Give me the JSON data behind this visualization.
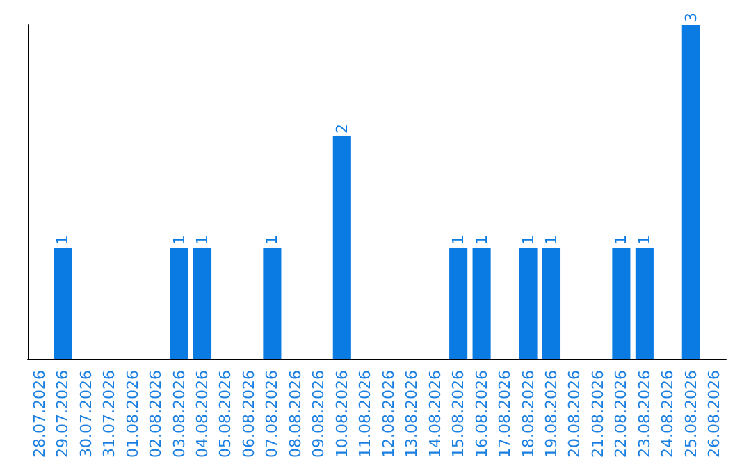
{
  "chart_data": {
    "type": "bar",
    "categories": [
      "28.07.2026",
      "29.07.2026",
      "30.07.2026",
      "31.07.2026",
      "01.08.2026",
      "02.08.2026",
      "03.08.2026",
      "04.08.2026",
      "05.08.2026",
      "06.08.2026",
      "07.08.2026",
      "08.08.2026",
      "09.08.2026",
      "10.08.2026",
      "11.08.2026",
      "12.08.2026",
      "13.08.2026",
      "14.08.2026",
      "15.08.2026",
      "16.08.2026",
      "17.08.2026",
      "18.08.2026",
      "19.08.2026",
      "20.08.2026",
      "21.08.2026",
      "22.08.2026",
      "23.08.2026",
      "24.08.2026",
      "25.08.2026",
      "26.08.2026"
    ],
    "values": [
      0,
      1,
      0,
      0,
      0,
      0,
      1,
      1,
      0,
      0,
      1,
      0,
      0,
      2,
      0,
      0,
      0,
      0,
      1,
      1,
      0,
      1,
      1,
      0,
      0,
      1,
      1,
      0,
      3,
      0
    ],
    "value_labels": [
      null,
      "1",
      null,
      null,
      null,
      null,
      "1",
      "1",
      null,
      null,
      "1",
      null,
      null,
      "2",
      null,
      null,
      null,
      null,
      "1",
      "1",
      null,
      "1",
      "1",
      null,
      null,
      "1",
      "1",
      null,
      "3",
      null
    ],
    "color": "#0a7be3",
    "grid": false
  }
}
